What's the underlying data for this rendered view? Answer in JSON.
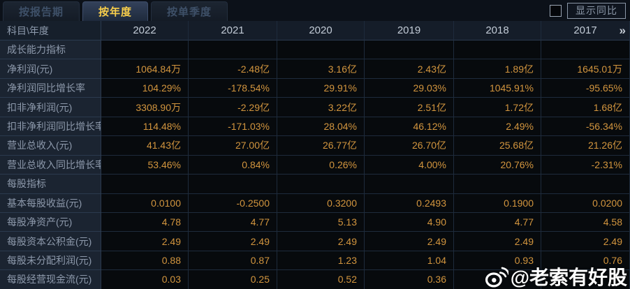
{
  "tabs": [
    {
      "label": "按报告期",
      "active": false
    },
    {
      "label": "按年度",
      "active": true
    },
    {
      "label": "按单季度",
      "active": false
    }
  ],
  "controls": {
    "yoy_toggle_label": "显示同比",
    "checkbox_checked": false
  },
  "table": {
    "corner_label": "科目\\年度",
    "years": [
      "2022",
      "2021",
      "2020",
      "2019",
      "2018",
      "2017"
    ],
    "more_columns_icon": "»",
    "rows": [
      {
        "type": "section",
        "label": "成长能力指标",
        "values": [
          "",
          "",
          "",
          "",
          "",
          ""
        ]
      },
      {
        "type": "highlight",
        "label": "净利润(元)",
        "values": [
          "1064.84万",
          "-2.48亿",
          "3.16亿",
          "2.43亿",
          "1.89亿",
          "1645.01万"
        ]
      },
      {
        "type": "data",
        "label": "净利润同比增长率",
        "values": [
          "104.29%",
          "-178.54%",
          "29.91%",
          "29.03%",
          "1045.91%",
          "-95.65%"
        ]
      },
      {
        "type": "data",
        "label": "扣非净利润(元)",
        "values": [
          "3308.90万",
          "-2.29亿",
          "3.22亿",
          "2.51亿",
          "1.72亿",
          "1.68亿"
        ]
      },
      {
        "type": "data",
        "label": "扣非净利润同比增长率",
        "values": [
          "114.48%",
          "-171.03%",
          "28.04%",
          "46.12%",
          "2.49%",
          "-56.34%"
        ]
      },
      {
        "type": "data",
        "label": "营业总收入(元)",
        "values": [
          "41.43亿",
          "27.00亿",
          "26.77亿",
          "26.70亿",
          "25.68亿",
          "21.26亿"
        ]
      },
      {
        "type": "data",
        "label": "营业总收入同比增长率",
        "values": [
          "53.46%",
          "0.84%",
          "0.26%",
          "4.00%",
          "20.76%",
          "-2.31%"
        ]
      },
      {
        "type": "section",
        "label": "每股指标",
        "values": [
          "",
          "",
          "",
          "",
          "",
          ""
        ]
      },
      {
        "type": "data",
        "label": "基本每股收益(元)",
        "values": [
          "0.0100",
          "-0.2500",
          "0.3200",
          "0.2493",
          "0.1900",
          "0.0200"
        ]
      },
      {
        "type": "data",
        "label": "每股净资产(元)",
        "values": [
          "4.78",
          "4.77",
          "5.13",
          "4.90",
          "4.77",
          "4.58"
        ]
      },
      {
        "type": "data",
        "label": "每股资本公积金(元)",
        "values": [
          "2.49",
          "2.49",
          "2.49",
          "2.49",
          "2.49",
          "2.49"
        ]
      },
      {
        "type": "data",
        "label": "每股未分配利润(元)",
        "values": [
          "0.88",
          "0.87",
          "1.23",
          "1.04",
          "0.93",
          "0.76"
        ]
      },
      {
        "type": "data",
        "label": "每股经营现金流(元)",
        "values": [
          "0.03",
          "0.25",
          "0.52",
          "0.36",
          "",
          ""
        ]
      }
    ]
  },
  "watermark": {
    "icon": "weibo-icon",
    "text": "@老索有好股"
  },
  "colors": {
    "accent_gold": "#f2c24f",
    "value_orange": "#d2953e",
    "highlight_row_bg": "#1b2540",
    "label_column_bg": "#1b2431",
    "header_bg": "#151d29",
    "data_bg": "#070a0d",
    "active_tab_text": "#f8ce4b"
  }
}
